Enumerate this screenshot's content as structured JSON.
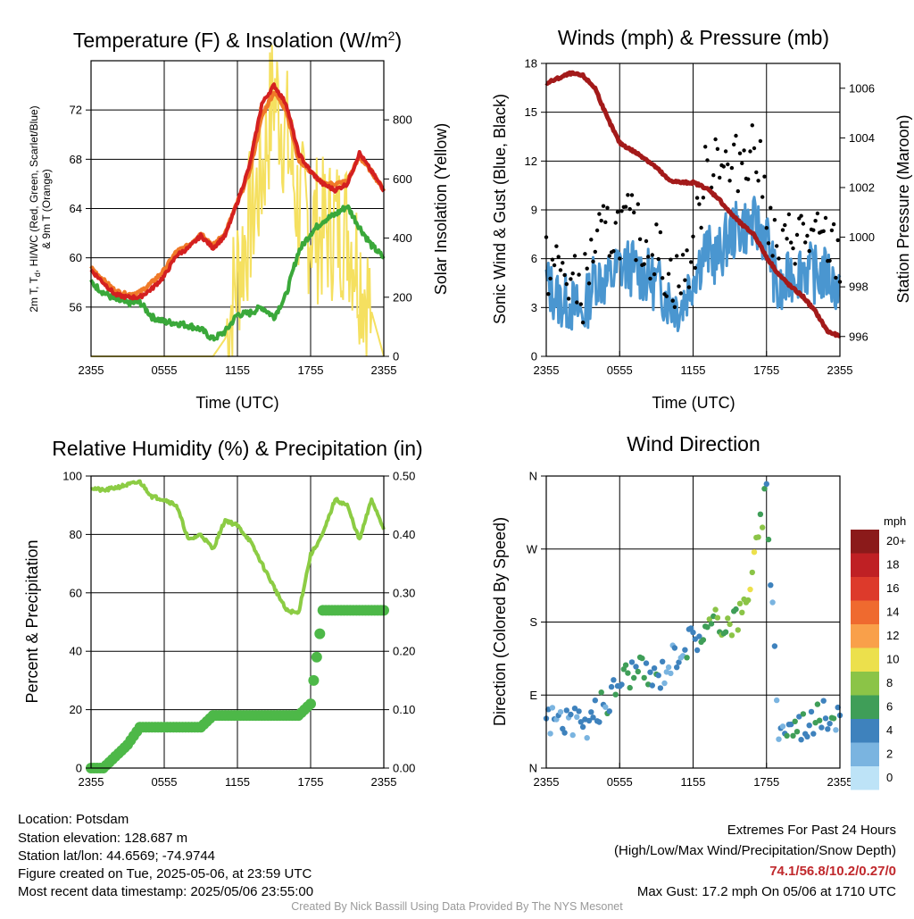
{
  "colors": {
    "red": "#d42020",
    "orange": "#f07a28",
    "green": "#3aa83a",
    "yellow": "#f5e060",
    "blue": "#4a96d0",
    "black": "#000000",
    "maroon": "#a31a1a",
    "rh": "#8ccc44",
    "precip": "#4db848"
  },
  "xticks": [
    "2355",
    "0555",
    "1155",
    "1755",
    "2355"
  ],
  "chart_data": [
    {
      "type": "line",
      "title_main": "Temperature (F) & Insolation (W/m",
      "title_sup": "2",
      "title_end": ")",
      "xlabel": "Time (UTC)",
      "ylabel_line1": "2m T, T",
      "ylabel_sub": "d",
      "ylabel_line1_end": ", HI/WC (Red, Green, Scarlet/Blue)",
      "ylabel_line2": "& 9m T (Orange)",
      "ylabel_right": "Solar Insolation (Yellow)",
      "ylim": [
        52,
        76
      ],
      "y2lim": [
        0,
        1000
      ],
      "yticks": [
        "56",
        "60",
        "64",
        "68",
        "72"
      ],
      "y2ticks": [
        "0",
        "200",
        "400",
        "600",
        "800"
      ],
      "x_hours": [
        0,
        1,
        2,
        3,
        4,
        5,
        6,
        7,
        8,
        9,
        10,
        11,
        12,
        13,
        14,
        15,
        16,
        17,
        18,
        19,
        20,
        21,
        22,
        23,
        24
      ],
      "series": [
        {
          "key": "temp9m",
          "values": [
            59.2,
            58.2,
            57.3,
            57.0,
            57.2,
            58.0,
            59.0,
            60.5,
            61.0,
            62.0,
            61.0,
            62.0,
            64.5,
            67.0,
            71.5,
            73.5,
            72.0,
            68.0,
            67.0,
            66.0,
            66.0,
            66.2,
            68.2,
            67.0,
            65.5
          ]
        },
        {
          "key": "temp2m",
          "values": [
            59.0,
            58.0,
            57.0,
            56.8,
            56.8,
            57.5,
            58.5,
            60.2,
            60.8,
            61.8,
            60.8,
            61.8,
            64.5,
            67.5,
            72.5,
            74.0,
            72.5,
            68.5,
            67.0,
            66.0,
            65.5,
            66.0,
            68.5,
            67.0,
            65.5
          ]
        },
        {
          "key": "dewpoint",
          "values": [
            58.0,
            57.2,
            56.6,
            56.3,
            56.4,
            55.2,
            54.8,
            54.7,
            54.5,
            54.2,
            53.4,
            54.0,
            55.4,
            55.5,
            56.0,
            55.2,
            57.0,
            60.5,
            62.0,
            63.0,
            63.5,
            64.2,
            62.5,
            61.0,
            60.0
          ]
        },
        {
          "key": "insolation",
          "values": [
            0,
            0,
            0,
            0,
            0,
            0,
            0,
            0,
            0,
            0,
            0,
            60,
            280,
            450,
            620,
            900,
            750,
            500,
            450,
            420,
            440,
            440,
            300,
            150,
            0
          ]
        }
      ]
    },
    {
      "type": "line",
      "title": "Winds (mph) & Pressure (mb)",
      "xlabel": "Time (UTC)",
      "ylabel": "Sonic Wind & Gust (Blue, Black)",
      "ylabel_right": "Station Pressure (Maroon)",
      "ylim": [
        0,
        18
      ],
      "y2lim": [
        995.2,
        1007
      ],
      "yticks": [
        "0",
        "3",
        "6",
        "9",
        "12",
        "15",
        "18"
      ],
      "y2ticks": [
        "996",
        "998",
        "1000",
        "1002",
        "1004",
        "1006"
      ],
      "x_hours": [
        0,
        1,
        2,
        3,
        4,
        5,
        6,
        7,
        8,
        9,
        10,
        11,
        12,
        13,
        14,
        15,
        16,
        17,
        18,
        19,
        20,
        21,
        22,
        23,
        24
      ],
      "series": [
        {
          "key": "wind",
          "values": [
            4.5,
            3.5,
            3.2,
            2.5,
            5.0,
            4.5,
            5.5,
            5.5,
            5.0,
            4.5,
            3.5,
            3.0,
            5.0,
            6.5,
            6.0,
            7.5,
            8.0,
            8.0,
            7.5,
            3.5,
            5.0,
            5.5,
            5.0,
            5.0,
            4.0
          ]
        },
        {
          "key": "gust",
          "values": [
            5.5,
            5.5,
            4.5,
            4.0,
            7.0,
            7.5,
            8.0,
            8.0,
            7.0,
            6.5,
            5.0,
            4.5,
            6.5,
            11.0,
            13.0,
            11.0,
            12.5,
            13.0,
            9.5,
            5.5,
            7.5,
            7.5,
            7.0,
            7.0,
            6.0
          ]
        },
        {
          "key": "pressure",
          "values": [
            1006.2,
            1006.4,
            1006.6,
            1006.5,
            1006.0,
            1004.8,
            1003.8,
            1003.5,
            1003.2,
            1002.8,
            1002.3,
            1002.2,
            1002.2,
            1002.0,
            1001.6,
            1001.0,
            1000.5,
            1000.1,
            999.2,
            998.5,
            998.0,
            997.6,
            997.0,
            996.2,
            996.0
          ]
        }
      ]
    },
    {
      "type": "line",
      "title": "Relative Humidity (%) & Precipitation (in)",
      "ylabel": "Percent & Precipitation",
      "ylim": [
        0,
        100
      ],
      "y2lim": [
        0,
        0.5
      ],
      "yticks": [
        "0",
        "20",
        "40",
        "60",
        "80",
        "100"
      ],
      "y2ticks": [
        "0.00",
        "0.10",
        "0.20",
        "0.30",
        "0.40",
        "0.50"
      ],
      "x_hours": [
        0,
        1,
        2,
        3,
        4,
        5,
        6,
        7,
        8,
        9,
        10,
        11,
        12,
        13,
        14,
        15,
        16,
        17,
        18,
        19,
        20,
        21,
        22,
        23,
        24
      ],
      "series": [
        {
          "key": "rh",
          "values": [
            96,
            95,
            96,
            97,
            98,
            93,
            92,
            90,
            78,
            80,
            75,
            85,
            83,
            78,
            70,
            62,
            54,
            53,
            73,
            80,
            92,
            90,
            78,
            92,
            82
          ]
        },
        {
          "key": "precip",
          "values": [
            0,
            0,
            0.02,
            0.04,
            0.07,
            0.07,
            0.07,
            0.07,
            0.07,
            0.07,
            0.09,
            0.09,
            0.09,
            0.09,
            0.09,
            0.09,
            0.09,
            0.09,
            0.11,
            0.27,
            0.27,
            0.27,
            0.27,
            0.27,
            0.27
          ]
        }
      ]
    },
    {
      "type": "scatter",
      "title": "Wind Direction",
      "ylabel": "Direction (Colored By Speed)",
      "yticks": [
        "N",
        "E",
        "S",
        "W",
        "N"
      ],
      "ylim": [
        0,
        360
      ],
      "x_hours": [
        0,
        1,
        2,
        3,
        4,
        5,
        6,
        7,
        8,
        9,
        10,
        11,
        12,
        13,
        14,
        15,
        16,
        17,
        18,
        19,
        20,
        21,
        22,
        23,
        24
      ],
      "direction_values": [
        60,
        62,
        58,
        48,
        70,
        80,
        110,
        120,
        118,
        110,
        130,
        150,
        160,
        170,
        180,
        182,
        190,
        255,
        340,
        50,
        50,
        55,
        60,
        65,
        65
      ],
      "speed_values": [
        4,
        3,
        4,
        3,
        5,
        4,
        6,
        5,
        5,
        4,
        3,
        3,
        5,
        6,
        7,
        7,
        8,
        9,
        5,
        3,
        5,
        4,
        5,
        4,
        4
      ],
      "legend_title": "mph",
      "legend_labels": [
        "20+",
        "18",
        "16",
        "14",
        "12",
        "10",
        "8",
        "6",
        "4",
        "2",
        "0"
      ],
      "legend_colors": [
        "#8b1a1a",
        "#bf2024",
        "#dd3a2b",
        "#ef6a2f",
        "#f9a04a",
        "#ece04c",
        "#8bc447",
        "#3f9e58",
        "#3e82bd",
        "#7ab4e0",
        "#bde3f7"
      ]
    }
  ],
  "info": {
    "location": "Location: Potsdam",
    "elevation": "Station elevation: 128.687 m",
    "latlon": "Station lat/lon: 44.6569; -74.9744",
    "created": "Figure created on Tue, 2025-05-06, at 23:59 UTC",
    "recent": "Most recent data timestamp: 2025/05/06 23:55:00"
  },
  "extremes": {
    "title": "Extremes For Past 24 Hours",
    "subtitle": "(High/Low/Max Wind/Precipitation/Snow Depth)",
    "values": "74.1/56.8/10.2/0.27/0",
    "gust": "Max Gust: 17.2 mph On 05/06 at 1710 UTC"
  },
  "credit": "Created By Nick Bassill Using Data Provided By The NYS Mesonet"
}
